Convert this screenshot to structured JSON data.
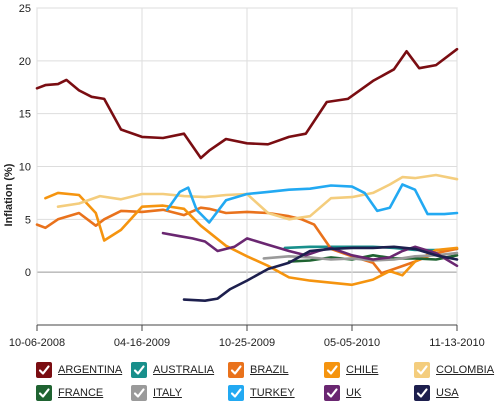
{
  "chart_data": {
    "type": "line",
    "ylabel": "Inflation (%)",
    "ylim": [
      -5,
      25
    ],
    "yticks": [
      "0",
      "5",
      "10",
      "15",
      "20",
      "25"
    ],
    "x_tick_labels": [
      "10-06-2008",
      "04-16-2009",
      "10-25-2009",
      "05-05-2010",
      "11-13-2010"
    ],
    "grid": true,
    "legend_position": "bottom",
    "series": [
      {
        "name": "ARGENTINA",
        "color": "#7a0d12",
        "points": [
          [
            0,
            17.4
          ],
          [
            0.02,
            17.7
          ],
          [
            0.05,
            17.8
          ],
          [
            0.07,
            18.2
          ],
          [
            0.1,
            17.2
          ],
          [
            0.13,
            16.6
          ],
          [
            0.16,
            16.4
          ],
          [
            0.2,
            13.5
          ],
          [
            0.25,
            12.8
          ],
          [
            0.3,
            12.7
          ],
          [
            0.35,
            13.1
          ],
          [
            0.39,
            10.8
          ],
          [
            0.41,
            11.5
          ],
          [
            0.45,
            12.6
          ],
          [
            0.5,
            12.2
          ],
          [
            0.55,
            12.1
          ],
          [
            0.6,
            12.8
          ],
          [
            0.64,
            13.1
          ],
          [
            0.69,
            16.1
          ],
          [
            0.74,
            16.4
          ],
          [
            0.8,
            18.1
          ],
          [
            0.85,
            19.2
          ],
          [
            0.88,
            20.9
          ],
          [
            0.91,
            19.3
          ],
          [
            0.95,
            19.6
          ],
          [
            1,
            21.1
          ]
        ]
      },
      {
        "name": "AUSTRALIA",
        "color": "#188f8b",
        "points": [
          [
            0.59,
            2.3
          ],
          [
            0.65,
            2.4
          ],
          [
            0.7,
            2.4
          ],
          [
            0.75,
            2.4
          ],
          [
            0.8,
            2.4
          ],
          [
            0.85,
            2.3
          ],
          [
            0.9,
            2.1
          ],
          [
            0.95,
            2.1
          ],
          [
            1,
            2.2
          ]
        ]
      },
      {
        "name": "BRAZIL",
        "color": "#e9721c",
        "points": [
          [
            0,
            4.5
          ],
          [
            0.02,
            4.2
          ],
          [
            0.05,
            5.0
          ],
          [
            0.1,
            5.6
          ],
          [
            0.14,
            4.4
          ],
          [
            0.16,
            5.0
          ],
          [
            0.2,
            5.8
          ],
          [
            0.25,
            5.7
          ],
          [
            0.3,
            5.9
          ],
          [
            0.35,
            5.4
          ],
          [
            0.39,
            6.1
          ],
          [
            0.41,
            6.0
          ],
          [
            0.45,
            5.6
          ],
          [
            0.5,
            5.7
          ],
          [
            0.55,
            5.6
          ],
          [
            0.6,
            5.3
          ],
          [
            0.63,
            5.0
          ],
          [
            0.66,
            4.5
          ],
          [
            0.7,
            2.2
          ],
          [
            0.75,
            1.5
          ],
          [
            0.8,
            0.9
          ],
          [
            0.82,
            -0.1
          ],
          [
            0.85,
            0.3
          ],
          [
            0.9,
            1.0
          ],
          [
            0.95,
            1.8
          ],
          [
            1,
            2.2
          ]
        ]
      },
      {
        "name": "CHILE",
        "color": "#f5940f",
        "points": [
          [
            0.02,
            7.0
          ],
          [
            0.05,
            7.5
          ],
          [
            0.1,
            7.3
          ],
          [
            0.14,
            5.6
          ],
          [
            0.16,
            3.0
          ],
          [
            0.2,
            4.0
          ],
          [
            0.25,
            6.2
          ],
          [
            0.3,
            6.3
          ],
          [
            0.35,
            6.0
          ],
          [
            0.39,
            4.4
          ],
          [
            0.45,
            2.5
          ],
          [
            0.5,
            1.5
          ],
          [
            0.55,
            0.6
          ],
          [
            0.6,
            -0.5
          ],
          [
            0.65,
            -0.8
          ],
          [
            0.7,
            -1.0
          ],
          [
            0.75,
            -1.2
          ],
          [
            0.8,
            -0.7
          ],
          [
            0.84,
            0.1
          ],
          [
            0.87,
            -0.3
          ],
          [
            0.9,
            1.0
          ],
          [
            0.95,
            2.1
          ],
          [
            1,
            2.3
          ]
        ]
      },
      {
        "name": "COLOMBIA",
        "color": "#f4cd7d",
        "points": [
          [
            0.05,
            6.2
          ],
          [
            0.1,
            6.5
          ],
          [
            0.15,
            7.2
          ],
          [
            0.2,
            6.9
          ],
          [
            0.25,
            7.4
          ],
          [
            0.3,
            7.4
          ],
          [
            0.35,
            7.2
          ],
          [
            0.4,
            7.1
          ],
          [
            0.45,
            7.3
          ],
          [
            0.5,
            7.4
          ],
          [
            0.55,
            5.6
          ],
          [
            0.6,
            5.0
          ],
          [
            0.65,
            5.3
          ],
          [
            0.7,
            7.0
          ],
          [
            0.75,
            7.1
          ],
          [
            0.8,
            7.5
          ],
          [
            0.84,
            8.3
          ],
          [
            0.87,
            9.0
          ],
          [
            0.9,
            8.9
          ],
          [
            0.95,
            9.2
          ],
          [
            1,
            8.8
          ]
        ]
      },
      {
        "name": "FRANCE",
        "color": "#1f6331",
        "points": [
          [
            0.6,
            1.0
          ],
          [
            0.65,
            1.1
          ],
          [
            0.7,
            1.4
          ],
          [
            0.75,
            1.2
          ],
          [
            0.8,
            1.6
          ],
          [
            0.85,
            1.3
          ],
          [
            0.9,
            1.3
          ],
          [
            0.95,
            1.2
          ],
          [
            1,
            1.6
          ]
        ]
      },
      {
        "name": "ITALY",
        "color": "#9a9a9a",
        "points": [
          [
            0.54,
            1.3
          ],
          [
            0.6,
            1.5
          ],
          [
            0.65,
            1.4
          ],
          [
            0.7,
            1.2
          ],
          [
            0.75,
            1.3
          ],
          [
            0.8,
            1.1
          ],
          [
            0.85,
            1.2
          ],
          [
            0.9,
            1.5
          ],
          [
            0.95,
            1.6
          ],
          [
            1,
            1.8
          ]
        ]
      },
      {
        "name": "TURKEY",
        "color": "#22a9f2",
        "points": [
          [
            0.31,
            5.9
          ],
          [
            0.34,
            7.6
          ],
          [
            0.36,
            8.0
          ],
          [
            0.38,
            5.9
          ],
          [
            0.41,
            4.7
          ],
          [
            0.45,
            6.8
          ],
          [
            0.5,
            7.4
          ],
          [
            0.55,
            7.6
          ],
          [
            0.6,
            7.8
          ],
          [
            0.65,
            7.9
          ],
          [
            0.7,
            8.2
          ],
          [
            0.75,
            8.1
          ],
          [
            0.78,
            7.5
          ],
          [
            0.81,
            5.8
          ],
          [
            0.84,
            6.1
          ],
          [
            0.87,
            8.3
          ],
          [
            0.9,
            7.8
          ],
          [
            0.93,
            5.5
          ],
          [
            0.97,
            5.5
          ],
          [
            1,
            5.6
          ]
        ]
      },
      {
        "name": "UK",
        "color": "#6a2771",
        "points": [
          [
            0.3,
            3.7
          ],
          [
            0.34,
            3.4
          ],
          [
            0.37,
            3.2
          ],
          [
            0.4,
            2.9
          ],
          [
            0.43,
            2.0
          ],
          [
            0.47,
            2.4
          ],
          [
            0.5,
            3.2
          ],
          [
            0.55,
            2.6
          ],
          [
            0.6,
            2.0
          ],
          [
            0.64,
            1.6
          ],
          [
            0.67,
            2.0
          ],
          [
            0.7,
            2.3
          ],
          [
            0.75,
            1.6
          ],
          [
            0.8,
            1.2
          ],
          [
            0.84,
            1.4
          ],
          [
            0.87,
            2.0
          ],
          [
            0.9,
            2.4
          ],
          [
            0.95,
            1.8
          ],
          [
            1,
            0.6
          ]
        ]
      },
      {
        "name": "USA",
        "color": "#1d1f4e",
        "points": [
          [
            0.35,
            -2.6
          ],
          [
            0.4,
            -2.7
          ],
          [
            0.43,
            -2.5
          ],
          [
            0.46,
            -1.6
          ],
          [
            0.5,
            -0.8
          ],
          [
            0.55,
            0.3
          ],
          [
            0.6,
            0.9
          ],
          [
            0.65,
            2.0
          ],
          [
            0.7,
            2.2
          ],
          [
            0.75,
            2.3
          ],
          [
            0.8,
            2.3
          ],
          [
            0.85,
            2.4
          ],
          [
            0.9,
            2.2
          ],
          [
            0.95,
            1.6
          ],
          [
            1,
            1.2
          ]
        ]
      }
    ]
  }
}
